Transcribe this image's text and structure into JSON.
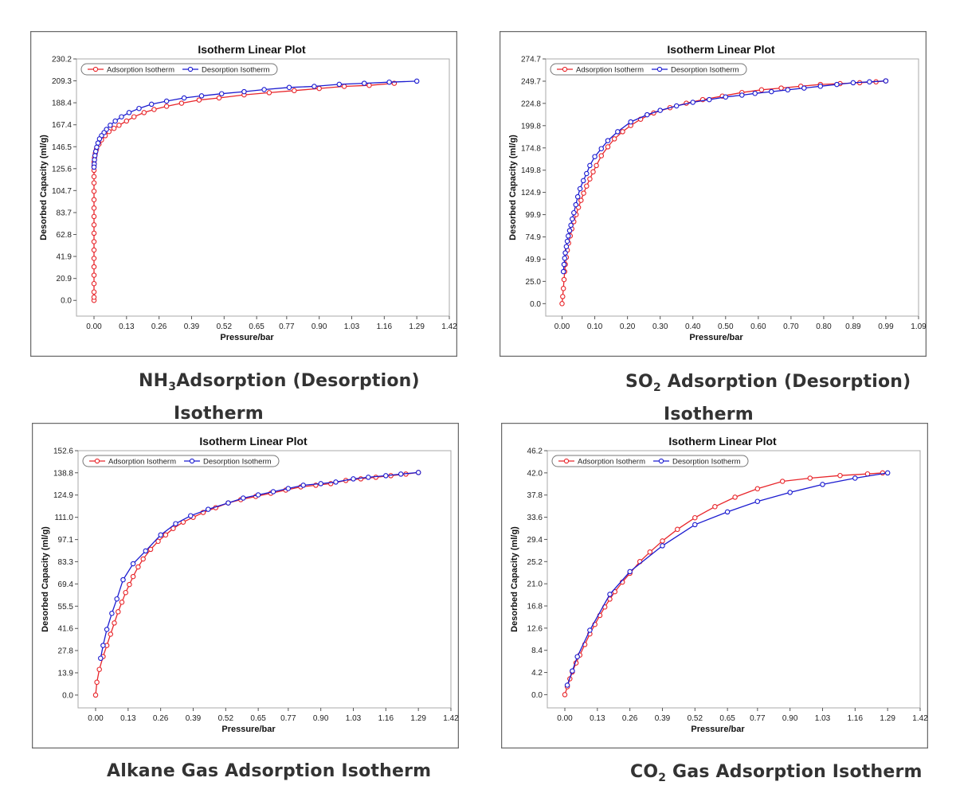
{
  "colors": {
    "adsorption": "#e8262b",
    "desorption": "#1b1bd0"
  },
  "charts": [
    {
      "type": "line",
      "title": "Isotherm Linear Plot",
      "xlabel": "Pressure/bar",
      "ylabel": "Desorbed Capacity (ml/g)",
      "legend": [
        "Adsorption Isotherm",
        "Desorption Isotherm"
      ],
      "xticks": [
        "0.00",
        "0.13",
        "0.26",
        "0.39",
        "0.52",
        "0.65",
        "0.77",
        "0.90",
        "1.03",
        "1.16",
        "1.29",
        "1.42"
      ],
      "yticks": [
        "0.0",
        "20.9",
        "41.9",
        "62.8",
        "83.7",
        "104.7",
        "125.6",
        "146.5",
        "167.4",
        "188.4",
        "209.3",
        "230.2"
      ],
      "xlim": [
        -0.07,
        1.42
      ],
      "ylim": [
        -15,
        230.2
      ],
      "caption": {
        "pre": "NH",
        "sub": "3",
        "line1": "Adsorption (Desorption)",
        "line2": "Isotherm"
      }
    },
    {
      "type": "line",
      "title": "Isotherm Linear Plot",
      "xlabel": "Pressure/bar",
      "ylabel": "Desorbed Capacity (ml/g)",
      "legend": [
        "Adsorption Isotherm",
        "Desorption Isotherm"
      ],
      "xticks": [
        "0.00",
        "0.10",
        "0.20",
        "0.30",
        "0.40",
        "0.50",
        "0.60",
        "0.70",
        "0.80",
        "0.89",
        "0.99",
        "1.09"
      ],
      "yticks": [
        "0.0",
        "25.0",
        "49.9",
        "74.9",
        "99.9",
        "124.9",
        "149.8",
        "174.8",
        "199.8",
        "224.8",
        "249.7",
        "274.7"
      ],
      "xlim": [
        -0.05,
        1.09
      ],
      "ylim": [
        -14,
        274.7
      ],
      "caption": {
        "pre": "SO",
        "sub": "2",
        "line1": " Adsorption (Desorption)",
        "line2": "Isotherm"
      }
    },
    {
      "type": "line",
      "title": "Isotherm Linear Plot",
      "xlabel": "Pressure/bar",
      "ylabel": "Desorbed Capacity (ml/g)",
      "legend": [
        "Adsorption Isotherm",
        "Desorption Isotherm"
      ],
      "xticks": [
        "0.00",
        "0.13",
        "0.26",
        "0.39",
        "0.52",
        "0.65",
        "0.77",
        "0.90",
        "1.03",
        "1.16",
        "1.29",
        "1.42"
      ],
      "yticks": [
        "0.0",
        "13.9",
        "27.8",
        "41.6",
        "55.5",
        "69.4",
        "83.3",
        "97.1",
        "111.0",
        "124.9",
        "138.8",
        "152.6"
      ],
      "xlim": [
        -0.07,
        1.42
      ],
      "ylim": [
        -8,
        152.6
      ],
      "caption": {
        "pre": "",
        "sub": "",
        "line1": "Alkane Gas Adsorption Isotherm",
        "line2": ""
      }
    },
    {
      "type": "line",
      "title": "Isotherm Linear Plot",
      "xlabel": "Pressure/bar",
      "ylabel": "Desorbed Capacity (ml/g)",
      "legend": [
        "Adsorption Isotherm",
        "Desorption Isotherm"
      ],
      "xticks": [
        "0.00",
        "0.13",
        "0.26",
        "0.39",
        "0.52",
        "0.65",
        "0.77",
        "0.90",
        "1.03",
        "1.16",
        "1.29",
        "1.42"
      ],
      "yticks": [
        "0.0",
        "4.2",
        "8.4",
        "12.6",
        "16.8",
        "21.0",
        "25.2",
        "29.4",
        "33.6",
        "37.8",
        "42.0",
        "46.2"
      ],
      "xlim": [
        -0.07,
        1.42
      ],
      "ylim": [
        -2.5,
        46.2
      ],
      "caption": {
        "pre": "CO",
        "sub": "2",
        "line1": " Gas Adsorption Isotherm",
        "line2": ""
      }
    }
  ],
  "chart_data": [
    {
      "type": "line",
      "title": "Isotherm Linear Plot",
      "series": [
        {
          "name": "Adsorption Isotherm",
          "x": [
            0.0,
            0.0,
            0.0,
            0.0,
            0.0,
            0.0,
            0.0,
            0.0,
            0.0,
            0.0,
            0.0,
            0.0,
            0.0,
            0.0,
            0.0,
            0.0,
            0.0,
            0.0,
            0.0,
            0.0,
            0.002,
            0.005,
            0.01,
            0.02,
            0.03,
            0.045,
            0.06,
            0.08,
            0.1,
            0.13,
            0.16,
            0.2,
            0.24,
            0.29,
            0.35,
            0.42,
            0.5,
            0.6,
            0.7,
            0.8,
            0.9,
            1.0,
            1.1,
            1.2
          ],
          "y": [
            0,
            3,
            8,
            16,
            24,
            32,
            40,
            48,
            56,
            64,
            72,
            80,
            88,
            96,
            104,
            112,
            118,
            124,
            128,
            132,
            136,
            140,
            144,
            149,
            153,
            157,
            161,
            164,
            167,
            171,
            175,
            179,
            182,
            185,
            188,
            191,
            193,
            196,
            198,
            200,
            202,
            204,
            205,
            207
          ]
        },
        {
          "name": "Desorption Isotherm",
          "x": [
            1.29,
            1.18,
            1.08,
            0.98,
            0.88,
            0.78,
            0.68,
            0.6,
            0.51,
            0.43,
            0.36,
            0.29,
            0.23,
            0.18,
            0.14,
            0.11,
            0.085,
            0.065,
            0.05,
            0.04,
            0.03,
            0.022,
            0.016,
            0.011,
            0.007,
            0.004,
            0.002,
            0.001,
            0.0
          ],
          "y": [
            209,
            208,
            207,
            206,
            204,
            203,
            201,
            199,
            197,
            195,
            193,
            190,
            187,
            183,
            179,
            175,
            171,
            167,
            163,
            160,
            157,
            154,
            150,
            146,
            142,
            138,
            134,
            130,
            127
          ]
        }
      ]
    },
    {
      "type": "line",
      "title": "Isotherm Linear Plot",
      "series": [
        {
          "name": "Adsorption Isotherm",
          "x": [
            0.0,
            0.002,
            0.004,
            0.006,
            0.008,
            0.01,
            0.013,
            0.016,
            0.02,
            0.025,
            0.03,
            0.036,
            0.043,
            0.05,
            0.058,
            0.066,
            0.075,
            0.085,
            0.095,
            0.105,
            0.12,
            0.14,
            0.16,
            0.185,
            0.21,
            0.24,
            0.28,
            0.33,
            0.38,
            0.43,
            0.49,
            0.55,
            0.61,
            0.67,
            0.73,
            0.79,
            0.85,
            0.91,
            0.96,
            0.99
          ],
          "y": [
            0,
            8,
            17,
            27,
            36,
            44,
            52,
            60,
            68,
            76,
            84,
            92,
            100,
            108,
            116,
            124,
            132,
            140,
            148,
            155,
            166,
            176,
            185,
            193,
            200,
            207,
            214,
            220,
            225,
            229,
            233,
            237,
            240,
            242,
            244,
            246,
            247,
            248,
            249,
            250
          ]
        },
        {
          "name": "Desorption Isotherm",
          "x": [
            0.99,
            0.94,
            0.89,
            0.84,
            0.79,
            0.74,
            0.69,
            0.64,
            0.59,
            0.55,
            0.5,
            0.45,
            0.4,
            0.35,
            0.3,
            0.26,
            0.21,
            0.17,
            0.14,
            0.12,
            0.1,
            0.085,
            0.075,
            0.065,
            0.055,
            0.048,
            0.042,
            0.036,
            0.031,
            0.027,
            0.023,
            0.019,
            0.016,
            0.013,
            0.01,
            0.008,
            0.006,
            0.004
          ],
          "y": [
            250,
            249,
            248,
            246,
            244,
            242,
            240,
            238,
            236,
            234,
            232,
            229,
            226,
            222,
            217,
            212,
            204,
            193,
            183,
            174,
            165,
            155,
            146,
            138,
            129,
            120,
            111,
            102,
            95,
            88,
            82,
            76,
            70,
            64,
            57,
            51,
            44,
            36
          ]
        }
      ]
    },
    {
      "type": "line",
      "title": "Isotherm Linear Plot",
      "series": [
        {
          "name": "Adsorption Isotherm",
          "x": [
            0.0,
            0.005,
            0.015,
            0.03,
            0.045,
            0.06,
            0.075,
            0.09,
            0.105,
            0.12,
            0.135,
            0.15,
            0.17,
            0.19,
            0.22,
            0.25,
            0.28,
            0.31,
            0.35,
            0.39,
            0.43,
            0.48,
            0.53,
            0.58,
            0.64,
            0.7,
            0.76,
            0.82,
            0.88,
            0.94,
            1.0,
            1.06,
            1.12,
            1.18,
            1.24,
            1.29
          ],
          "y": [
            0,
            8,
            16,
            24,
            31,
            38,
            45,
            52,
            58,
            64,
            69,
            74,
            80,
            85,
            91,
            96,
            100,
            104,
            108,
            111,
            114,
            117,
            120,
            122,
            124,
            126,
            128,
            130,
            131,
            132,
            134,
            135,
            136,
            137,
            138,
            139
          ]
        },
        {
          "name": "Desorption Isotherm",
          "x": [
            1.29,
            1.22,
            1.16,
            1.09,
            1.03,
            0.96,
            0.9,
            0.83,
            0.77,
            0.71,
            0.65,
            0.59,
            0.53,
            0.45,
            0.38,
            0.32,
            0.26,
            0.2,
            0.15,
            0.11,
            0.085,
            0.065,
            0.045,
            0.03,
            0.02
          ],
          "y": [
            139,
            138,
            137,
            136,
            135,
            133,
            132,
            131,
            129,
            127,
            125,
            123,
            120,
            116,
            112,
            107,
            100,
            90,
            82,
            72,
            60,
            51,
            41,
            31,
            23
          ]
        }
      ]
    },
    {
      "type": "line",
      "title": "Isotherm Linear Plot",
      "series": [
        {
          "name": "Adsorption Isotherm",
          "x": [
            0.0,
            0.01,
            0.02,
            0.03,
            0.045,
            0.06,
            0.08,
            0.1,
            0.12,
            0.14,
            0.16,
            0.18,
            0.2,
            0.23,
            0.26,
            0.3,
            0.34,
            0.39,
            0.45,
            0.52,
            0.6,
            0.68,
            0.77,
            0.87,
            0.98,
            1.1,
            1.21,
            1.27
          ],
          "y": [
            0,
            1.5,
            3,
            4.3,
            6,
            7.5,
            9.5,
            11.5,
            13.3,
            15,
            16.6,
            18.1,
            19.5,
            21.3,
            23,
            25.2,
            27,
            29.1,
            31.3,
            33.5,
            35.6,
            37.4,
            39,
            40.4,
            41,
            41.5,
            41.8,
            42
          ]
        },
        {
          "name": "Desorption Isotherm",
          "x": [
            1.29,
            1.16,
            1.03,
            0.9,
            0.77,
            0.65,
            0.52,
            0.39,
            0.26,
            0.18,
            0.1,
            0.05,
            0.03,
            0.01
          ],
          "y": [
            42,
            41,
            39.8,
            38.3,
            36.6,
            34.6,
            32.2,
            28.2,
            23.3,
            19,
            12.2,
            7.2,
            4.5,
            1.8
          ]
        }
      ]
    }
  ]
}
